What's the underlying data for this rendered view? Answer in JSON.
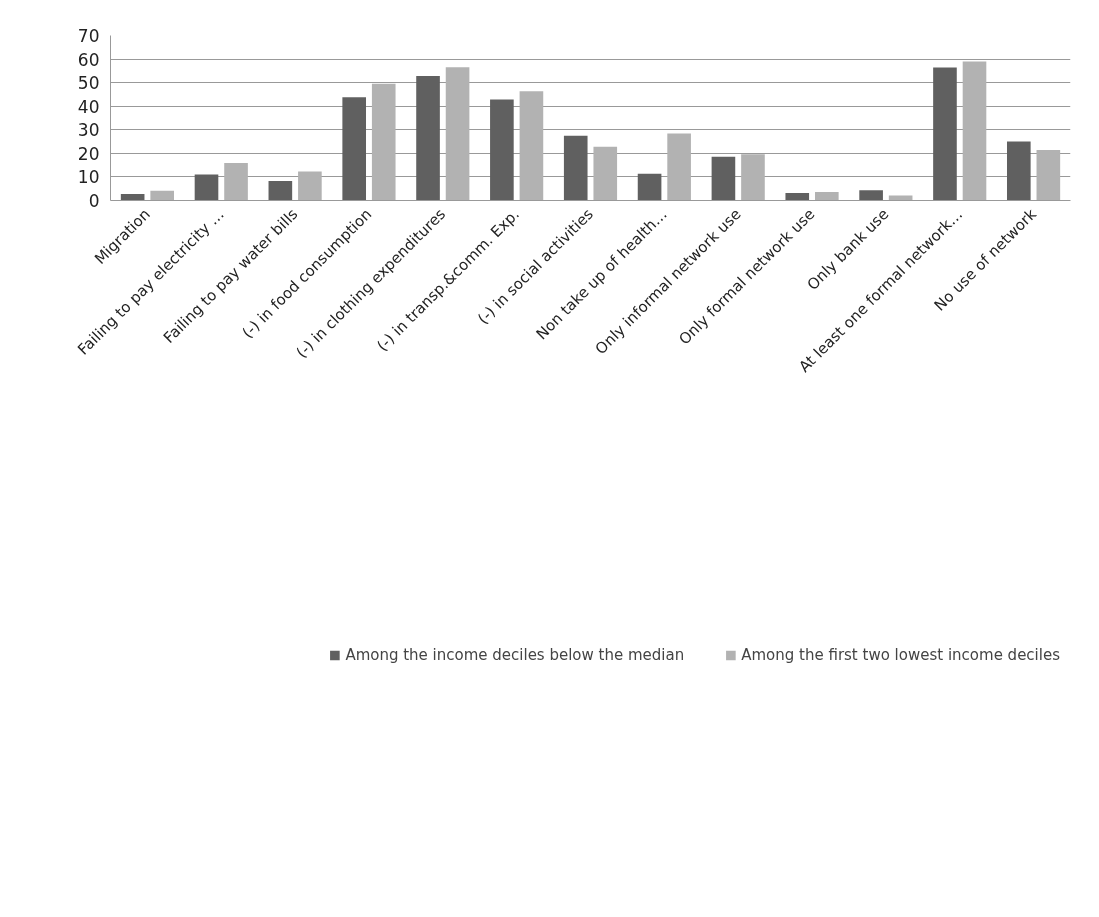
{
  "chart_data": {
    "type": "bar",
    "categories": [
      "Migration",
      "Failing to pay electricity …",
      "Failing to pay water bills",
      "(-) in food consumption",
      "(-) in clothing expenditures",
      "(-) in transp.&comm. Exp.",
      "(-) in social activities",
      "Non take up of health…",
      "Only informal network use",
      "Only formal network use",
      "Only bank use",
      "At least one formal network…",
      "No use of network"
    ],
    "series": [
      {
        "name": "Among the income deciles below the median",
        "color": "#606060",
        "values": [
          2.8,
          11.0,
          8.3,
          43.8,
          52.8,
          42.9,
          27.5,
          11.4,
          18.6,
          3.2,
          4.4,
          56.4,
          25.0
        ]
      },
      {
        "name": "Among the first two lowest income deciles",
        "color": "#b2b2b2",
        "values": [
          4.1,
          15.9,
          12.3,
          49.5,
          56.5,
          46.4,
          22.8,
          28.4,
          19.6,
          3.6,
          2.1,
          59.0,
          21.4
        ]
      }
    ],
    "ylim": [
      0,
      70
    ],
    "yticks": [
      0,
      10,
      20,
      30,
      40,
      50,
      60,
      70
    ],
    "grid": "y",
    "legend": "bottom"
  }
}
